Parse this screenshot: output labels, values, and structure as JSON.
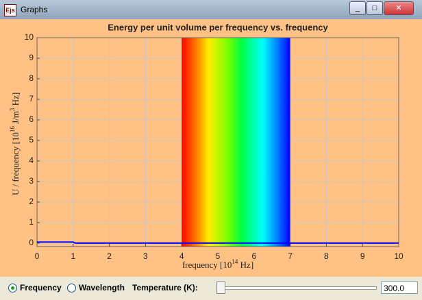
{
  "window": {
    "title": "Graphs",
    "icon": "Ejs"
  },
  "chart_data": {
    "type": "line",
    "title": "Energy per unit volume per frequency vs. frequency",
    "x_label": {
      "text": "frequency [10",
      "sup": "14",
      "tail": " Hz]"
    },
    "y_label": {
      "text": "U / frequency [10",
      "sup": "16",
      "mid": " J/m",
      "sup2": "3",
      "tail": " Hz]"
    },
    "x": [
      0,
      1,
      1.05,
      10
    ],
    "series": [
      {
        "name": "U",
        "color": "#0000ff",
        "values": [
          0.05,
          0.05,
          0,
          0
        ]
      }
    ],
    "visible_band": [
      4,
      7
    ],
    "xlim": [
      0,
      10
    ],
    "ylim": [
      -0.17,
      10
    ],
    "xticks": [
      0,
      1,
      2,
      3,
      4,
      5,
      6,
      7,
      8,
      9,
      10
    ],
    "yticks": [
      0,
      1,
      2,
      3,
      4,
      5,
      6,
      7,
      8,
      9,
      10
    ],
    "grid": true
  },
  "controls": {
    "radio_frequency": "Frequency",
    "radio_wavelength": "Wavelength",
    "temperature_label": "Temperature (K):",
    "temperature_value": "300.0"
  }
}
